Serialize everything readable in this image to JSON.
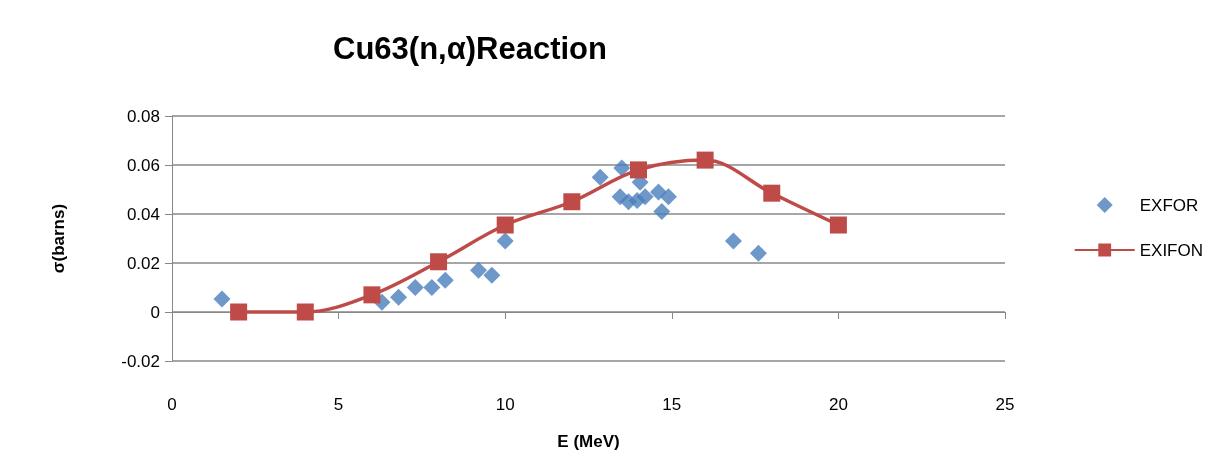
{
  "chart_data": {
    "type": "scatter",
    "title": "Cu63(n,α)Reaction",
    "xlabel": "E (MeV)",
    "ylabel": "σ(barns)",
    "xlim": [
      0,
      25
    ],
    "xticks": [
      0,
      5,
      10,
      15,
      20,
      25
    ],
    "ylim": [
      -0.02,
      0.08
    ],
    "yticks": [
      -0.02,
      0,
      0.02,
      0.04,
      0.06,
      0.08
    ],
    "grid": "y",
    "legend": "right",
    "series": [
      {
        "name": "EXFOR",
        "type": "scatter",
        "marker": "diamond",
        "color": "#4a7ebb",
        "x": [
          1.5,
          6.3,
          6.8,
          7.3,
          7.8,
          8.2,
          9.2,
          9.6,
          10,
          12.85,
          13.45,
          13.5,
          13.7,
          13.96,
          14.05,
          14.2,
          14.6,
          14.7,
          14.9,
          16.85,
          17.6
        ],
        "values": [
          0.0053,
          0.004,
          0.006,
          0.01,
          0.01,
          0.013,
          0.017,
          0.015,
          0.029,
          0.055,
          0.047,
          0.0588,
          0.045,
          0.0455,
          0.053,
          0.047,
          0.049,
          0.041,
          0.047,
          0.029,
          0.024
        ]
      },
      {
        "name": "EXIFON",
        "type": "line",
        "marker": "square",
        "line_style": "solid",
        "color": "#be4b48",
        "x": [
          2,
          4,
          6,
          8,
          10,
          12,
          14,
          16,
          18,
          20
        ],
        "values": [
          0,
          0,
          0.007,
          0.0205,
          0.0355,
          0.045,
          0.058,
          0.062,
          0.0485,
          0.0355
        ]
      }
    ]
  }
}
